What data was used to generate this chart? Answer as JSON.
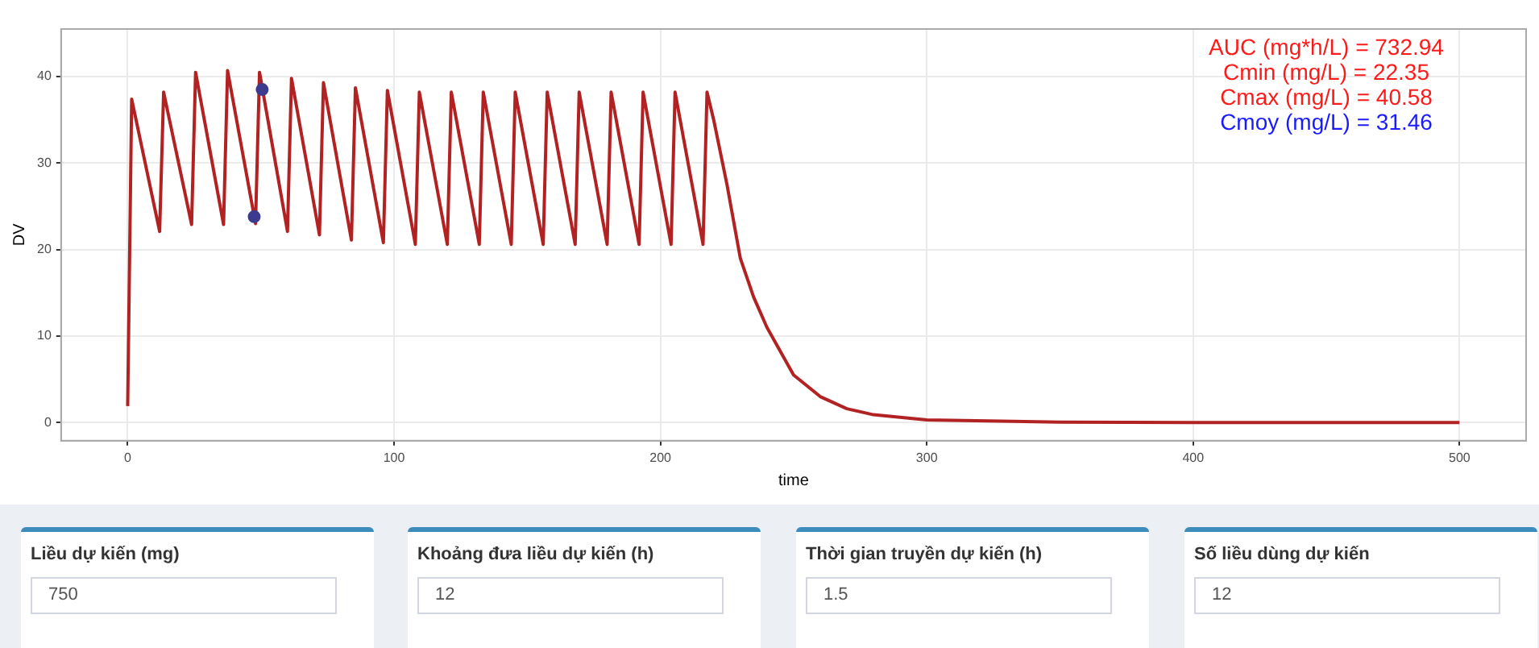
{
  "chart_data": [
    {
      "type": "line",
      "xlabel": "time",
      "ylabel": "DV",
      "xlim": [
        -25,
        525
      ],
      "ylim": [
        -2.1,
        45.5
      ],
      "xticks": [
        0,
        100,
        200,
        300,
        400,
        500
      ],
      "yticks": [
        0,
        10,
        20,
        30,
        40
      ],
      "grid": true,
      "annotations": [
        "AUC (mg*h/L) = 732.94",
        "Cmin (mg/L) = 22.35",
        "Cmax (mg/L) = 40.58",
        "Cmoy (mg/L) = 31.46"
      ],
      "series": [
        {
          "type": "line",
          "color": "#b22222",
          "marker": "none",
          "line_style": "solid",
          "x": [
            0,
            1.5,
            12,
            13.5,
            24,
            25.5,
            36,
            37.5,
            48,
            49.5,
            60,
            61.5,
            72,
            73.5,
            84,
            85.5,
            96,
            97.5,
            108,
            109.5,
            120,
            121.5,
            132,
            133.5,
            144,
            145.5,
            156,
            157.5,
            168,
            169.5,
            180,
            181.5,
            192,
            193.5,
            204,
            205.5,
            216,
            217.5,
            220,
            225,
            230,
            235,
            240,
            250,
            260,
            270,
            280,
            300,
            350,
            400,
            500
          ],
          "values": [
            1.9,
            37.4,
            22.1,
            38.2,
            22.9,
            40.5,
            22.9,
            40.7,
            23,
            40.5,
            22.1,
            39.8,
            21.7,
            39.3,
            21.1,
            38.7,
            20.8,
            38.4,
            20.6,
            38.2,
            20.6,
            38.2,
            20.6,
            38.2,
            20.6,
            38.2,
            20.6,
            38.2,
            20.6,
            38.2,
            20.6,
            38.2,
            20.6,
            38.2,
            20.6,
            38.2,
            20.6,
            38.2,
            35,
            27.5,
            19,
            14.5,
            11,
            5.5,
            3,
            1.6,
            0.9,
            0.3,
            0.05,
            0,
            0
          ]
        },
        {
          "type": "scatter",
          "color": "#3d3b8e",
          "marker": "circle",
          "x": [
            47.5,
            50.5
          ],
          "values": [
            23.8,
            38.5
          ]
        }
      ]
    },
    {
      "type": "other",
      "annotations": [
        "Liều dự kiến (mg)",
        "750",
        "Khoảng đưa liều dự kiến (h)",
        "12",
        "Thời gian truyền dự kiến (h)",
        "1.5",
        "Số liều dùng dự kiến",
        "12"
      ]
    }
  ]
}
